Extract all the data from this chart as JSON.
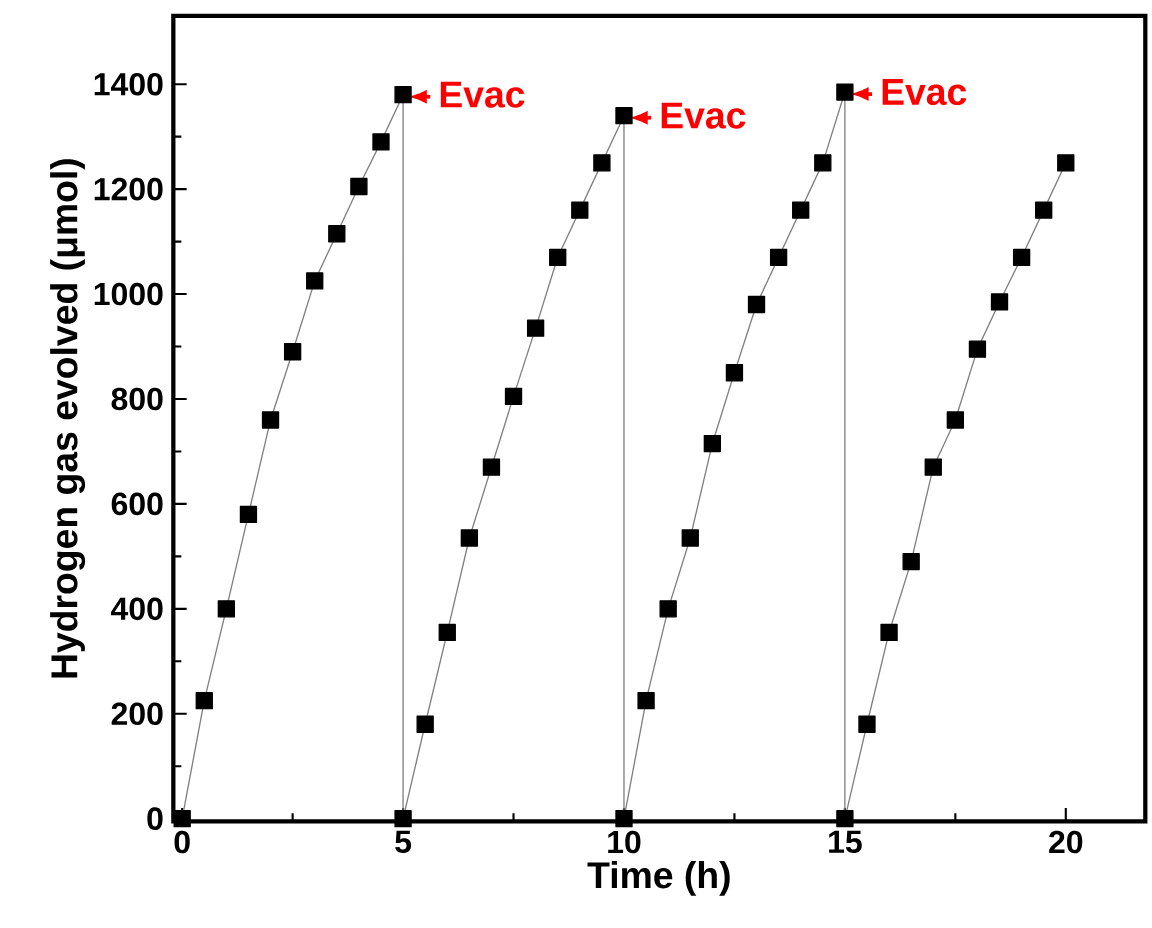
{
  "chart_data": {
    "type": "line",
    "xlabel": "Time (h)",
    "ylabel": "Hydrogen gas evolved (μmol)",
    "xlim": [
      -0.2,
      21.8
    ],
    "ylim": [
      -5,
      1530
    ],
    "xticks": [
      0,
      5,
      10,
      15,
      20
    ],
    "yticks": [
      0,
      200,
      400,
      600,
      800,
      1000,
      1200,
      1400
    ],
    "marker": "square",
    "x": [
      0,
      0.5,
      1,
      1.5,
      2,
      2.5,
      3,
      3.5,
      4,
      4.5,
      5,
      5,
      5.5,
      6,
      6.5,
      7,
      7.5,
      8,
      8.5,
      9,
      9.5,
      10,
      10,
      10.5,
      11,
      11.5,
      12,
      12.5,
      13,
      13.5,
      14,
      14.5,
      15,
      15,
      15.5,
      16,
      16.5,
      17,
      17.5,
      18,
      18.5,
      19,
      19.5,
      20
    ],
    "series": [
      {
        "color": "#000000",
        "values": [
          0,
          225,
          400,
          580,
          760,
          890,
          1025,
          1115,
          1205,
          1290,
          1380,
          0,
          180,
          355,
          535,
          670,
          805,
          935,
          1070,
          1160,
          1250,
          1340,
          0,
          225,
          400,
          535,
          715,
          850,
          980,
          1070,
          1160,
          1250,
          1385,
          0,
          180,
          355,
          490,
          670,
          760,
          895,
          985,
          1070,
          1160,
          1250
        ]
      }
    ],
    "annotations": [
      {
        "text": "Evac",
        "x": 5,
        "y": 1380
      },
      {
        "text": "Evac",
        "x": 10,
        "y": 1340
      },
      {
        "text": "Evac",
        "x": 15,
        "y": 1385
      }
    ]
  }
}
